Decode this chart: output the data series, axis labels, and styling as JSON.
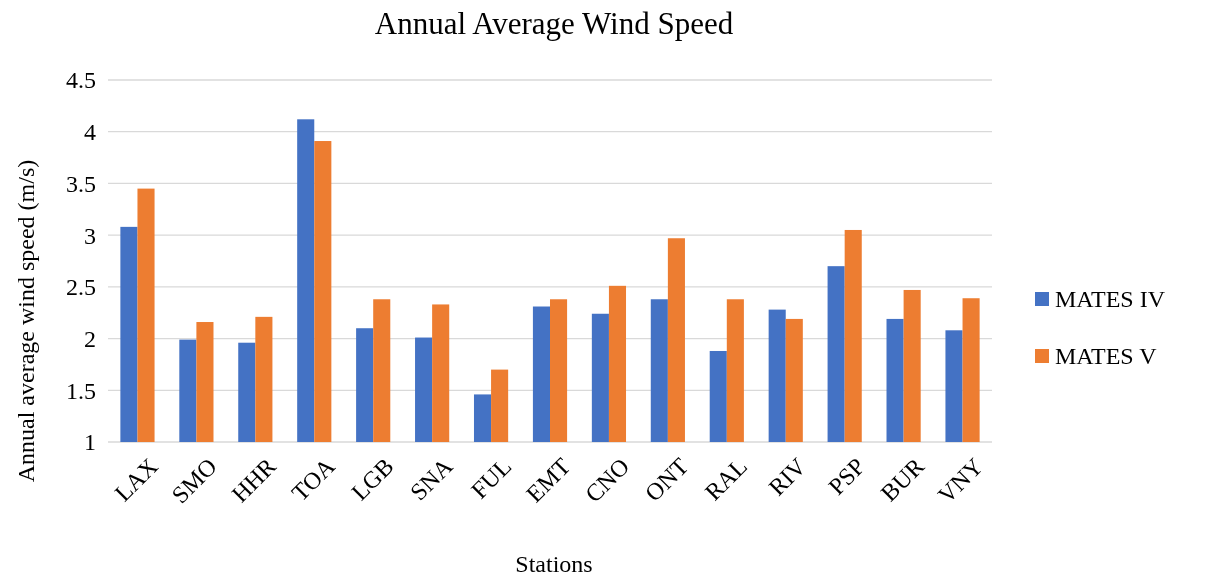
{
  "chart_data": {
    "type": "bar",
    "title": "Annual Average Wind Speed",
    "xlabel": "Stations",
    "ylabel": "Annual average wind speed (m/s)",
    "categories": [
      "LAX",
      "SMO",
      "HHR",
      "TOA",
      "LGB",
      "SNA",
      "FUL",
      "EMT",
      "CNO",
      "ONT",
      "RAL",
      "RIV",
      "PSP",
      "BUR",
      "VNY"
    ],
    "series": [
      {
        "name": "MATES IV",
        "color": "#4472c4",
        "values": [
          3.08,
          1.99,
          1.96,
          4.12,
          2.1,
          2.01,
          1.46,
          2.31,
          2.24,
          2.38,
          1.88,
          2.28,
          2.7,
          2.19,
          2.08
        ]
      },
      {
        "name": "MATES V",
        "color": "#ed7d31",
        "values": [
          3.45,
          2.16,
          2.21,
          3.91,
          2.38,
          2.33,
          1.7,
          2.38,
          2.51,
          2.97,
          2.38,
          2.19,
          3.05,
          2.47,
          2.39
        ]
      }
    ],
    "ylim": [
      1,
      4.5
    ],
    "yticks": [
      1,
      1.5,
      2,
      2.5,
      3,
      3.5,
      4,
      4.5
    ],
    "grid": "y",
    "legend": "right"
  }
}
